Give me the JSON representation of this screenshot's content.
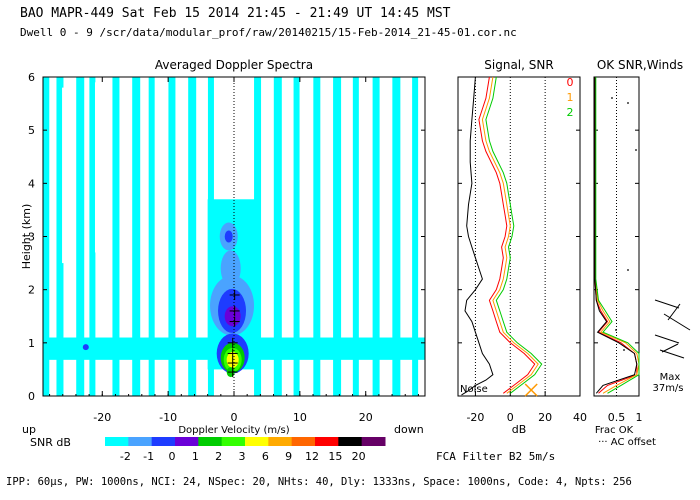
{
  "header": {
    "line1": "BAO  MAPR-449  Sat Feb 15 2014 21:45 - 21:49 UT 14:45 MST",
    "line2": "Dwell  0 - 9   /scr/data/modular_prof/raw/20140215/15-Feb-2014_21-45-01.cor.nc"
  },
  "chart_data": [
    {
      "type": "heatmap",
      "title": "Averaged Doppler Spectra",
      "xlabel": "Doppler Velocity (m/s)",
      "ylabel": "Height (km)",
      "xlim": [
        -29,
        29
      ],
      "ylim": [
        0,
        6
      ],
      "xticks": [
        "-20",
        "-10",
        "0",
        "10",
        "20"
      ],
      "yticks": [
        "0",
        "1",
        "2",
        "3",
        "4",
        "5",
        "6"
      ],
      "left_annotation": "up",
      "right_annotation": "down",
      "colorbar": {
        "label": "SNR dB",
        "ticks": [
          "-2",
          "-1",
          "0",
          "1",
          "2",
          "3",
          "6",
          "9",
          "12",
          "15",
          "20"
        ],
        "colors": [
          "#00ffff",
          "#4aa3ff",
          "#1e3cff",
          "#6a00d8",
          "#00cc00",
          "#33ff00",
          "#ffff00",
          "#ffaa00",
          "#ff6600",
          "#ff0000",
          "#000000",
          "#660066"
        ]
      },
      "cursor_heights_km": [
        0.45,
        0.62,
        0.8,
        1.0,
        1.4,
        1.6,
        1.9
      ]
    },
    {
      "type": "line",
      "title": "Signal, SNR",
      "xlabel": "dB",
      "xlim": [
        -30,
        40
      ],
      "ylim": [
        0,
        6
      ],
      "xticks": [
        "-20",
        "0",
        "20",
        "40"
      ],
      "annotation": "Noise",
      "series": [
        {
          "name": "0",
          "color": "#ff0000",
          "x": [
            -12,
            -14,
            -18,
            -16,
            -14,
            -8,
            -6,
            -5,
            -4,
            -3,
            -2,
            -3,
            -5,
            -4,
            -5,
            -6,
            -8,
            -12,
            -10,
            -8,
            -6,
            0,
            8,
            14,
            10,
            2,
            -4
          ],
          "y": [
            6,
            5.6,
            5.2,
            4.8,
            4.6,
            4.2,
            4.0,
            3.8,
            3.6,
            3.4,
            3.2,
            3.0,
            2.8,
            2.6,
            2.4,
            2.2,
            2.0,
            1.8,
            1.6,
            1.4,
            1.2,
            1.0,
            0.8,
            0.6,
            0.4,
            0.2,
            0.05
          ]
        },
        {
          "name": "1",
          "color": "#ff9900",
          "x": [
            -10,
            -12,
            -16,
            -14,
            -12,
            -6,
            -4,
            -3,
            -2,
            -1,
            0,
            -1,
            -3,
            -2,
            -3,
            -4,
            -6,
            -10,
            -8,
            -6,
            -4,
            2,
            10,
            16,
            12,
            4,
            -2
          ],
          "y": [
            6,
            5.6,
            5.2,
            4.8,
            4.6,
            4.2,
            4.0,
            3.8,
            3.6,
            3.4,
            3.2,
            3.0,
            2.8,
            2.6,
            2.4,
            2.2,
            2.0,
            1.8,
            1.6,
            1.4,
            1.2,
            1.0,
            0.8,
            0.6,
            0.4,
            0.2,
            0.05
          ]
        },
        {
          "name": "2",
          "color": "#00cc00",
          "x": [
            -8,
            -10,
            -14,
            -12,
            -10,
            -4,
            -2,
            -1,
            0,
            1,
            2,
            1,
            -1,
            0,
            -1,
            -2,
            -4,
            -8,
            -6,
            -4,
            -2,
            4,
            12,
            18,
            14,
            6,
            0
          ],
          "y": [
            6,
            5.6,
            5.2,
            4.8,
            4.6,
            4.2,
            4.0,
            3.8,
            3.6,
            3.4,
            3.2,
            3.0,
            2.8,
            2.6,
            2.4,
            2.2,
            2.0,
            1.8,
            1.6,
            1.4,
            1.2,
            1.0,
            0.8,
            0.6,
            0.4,
            0.2,
            0.05
          ]
        },
        {
          "name": "noise",
          "color": "#000000",
          "x": [
            -20,
            -21,
            -22,
            -23,
            -23,
            -22,
            -24,
            -25,
            -24,
            -22,
            -20,
            -18,
            -16,
            -20,
            -25,
            -26,
            -22,
            -20,
            -18,
            -16,
            -12,
            -10,
            -14,
            -20,
            -24,
            -28
          ],
          "y": [
            6,
            5.6,
            5.2,
            4.8,
            4.4,
            4.0,
            3.6,
            3.2,
            3.0,
            2.8,
            2.6,
            2.4,
            2.2,
            2.0,
            1.8,
            1.6,
            1.4,
            1.2,
            1.0,
            0.8,
            0.6,
            0.4,
            0.3,
            0.2,
            0.1,
            0.02
          ]
        }
      ]
    },
    {
      "type": "line",
      "title": "OK SNR,Winds",
      "xlabel": "Frac OK",
      "xlim": [
        0,
        1
      ],
      "ylim": [
        0,
        6
      ],
      "xticks": [
        "0.5",
        "1"
      ],
      "legend": [
        "0",
        "1",
        "2"
      ],
      "subnote": "··· AC offset",
      "max_label": "Max",
      "max_value": "37m/s",
      "series": [
        {
          "name": "0",
          "color": "#ff0000",
          "x": [
            0.02,
            0.02,
            0.02,
            0.02,
            0.05,
            0.15,
            0.3,
            0.1,
            0.6,
            0.9,
            0.95,
            0.95,
            0.3,
            0.1
          ],
          "y": [
            6,
            4,
            3,
            2.2,
            1.8,
            1.6,
            1.4,
            1.2,
            1.0,
            0.8,
            0.6,
            0.4,
            0.2,
            0.05
          ]
        },
        {
          "name": "1",
          "color": "#ff9900",
          "x": [
            0.03,
            0.03,
            0.03,
            0.03,
            0.08,
            0.2,
            0.35,
            0.15,
            0.7,
            0.95,
            1.0,
            0.95,
            0.5,
            0.2
          ],
          "y": [
            6,
            4,
            3,
            2.2,
            1.8,
            1.6,
            1.4,
            1.2,
            1.0,
            0.8,
            0.6,
            0.4,
            0.2,
            0.05
          ]
        },
        {
          "name": "2",
          "color": "#00cc00",
          "x": [
            0.04,
            0.04,
            0.04,
            0.04,
            0.1,
            0.25,
            0.4,
            0.2,
            0.75,
            1.0,
            1.0,
            1.0,
            0.6,
            0.3
          ],
          "y": [
            6,
            4,
            3,
            2.2,
            1.8,
            1.6,
            1.4,
            1.2,
            1.0,
            0.8,
            0.6,
            0.4,
            0.2,
            0.05
          ]
        },
        {
          "name": "ok",
          "color": "#000000",
          "x": [
            0.02,
            0.02,
            0.02,
            0.02,
            0.05,
            0.12,
            0.28,
            0.08,
            0.55,
            0.9,
            0.95,
            0.9,
            0.2,
            0.05
          ],
          "y": [
            6,
            4,
            3,
            2.2,
            1.8,
            1.6,
            1.4,
            1.2,
            1.0,
            0.8,
            0.6,
            0.4,
            0.2,
            0.05
          ]
        }
      ]
    }
  ],
  "filter_label": "FCA Filter B2  5m/s",
  "footer": "IPP: 60μs, PW: 1000ns, NCI: 24, NSpec: 20, NHts: 40, Dly: 1333ns, Space: 1000ns, Code: 4, Npts: 256"
}
